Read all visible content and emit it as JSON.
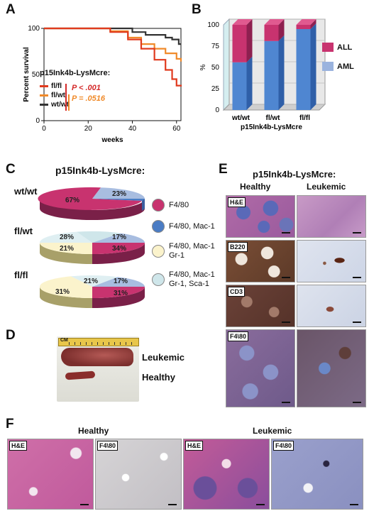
{
  "panels": {
    "A": "A",
    "B": "B",
    "C": "C",
    "D": "D",
    "E": "E",
    "F": "F"
  },
  "panelA": {
    "legend_title": "p15Ink4b-LysMcre:",
    "legend": [
      {
        "label": "fl/fl",
        "color": "#e03a1e"
      },
      {
        "label": "fl/wt",
        "color": "#f08a2a"
      },
      {
        "label": "wt/wt",
        "color": "#333333"
      }
    ],
    "p1": "P < .001",
    "p2": "P = .0516",
    "p1_color": "#d42a2a",
    "p2_color": "#f08a2a"
  },
  "panelB": {
    "legend": [
      {
        "label": "ALL",
        "color": "#c8336f"
      },
      {
        "label": "AML",
        "color": "#9ab3de"
      }
    ]
  },
  "panelC": {
    "title": "p15Ink4b-LysMcre:",
    "pies": [
      {
        "label": "wt/wt",
        "slices": [
          "67%",
          "23%"
        ]
      },
      {
        "label": "fl/wt",
        "slices": [
          "28%",
          "17%",
          "34%",
          "21%"
        ]
      },
      {
        "label": "fl/fl",
        "slices": [
          "21%",
          "17%",
          "31%",
          "31%"
        ]
      }
    ],
    "legend": [
      {
        "lines": [
          "F4/80"
        ],
        "color": "#c8336f"
      },
      {
        "lines": [
          "F4/80, Mac-1"
        ],
        "color": "#4a7cc4"
      },
      {
        "lines": [
          "F4/80, Mac-1",
          "Gr-1"
        ],
        "color": "#fbf3cc"
      },
      {
        "lines": [
          "F4/80, Mac-1",
          "Gr-1, Sca-1"
        ],
        "color": "#cfe6ea"
      }
    ]
  },
  "panelD": {
    "leukemic": "Leukemic",
    "healthy": "Healthy",
    "ruler": "CM"
  },
  "panelE": {
    "title": "p15Ink4b-LysMcre:",
    "col_healthy": "Healthy",
    "col_leukemic": "Leukemic",
    "rows": [
      "H&E",
      "B220",
      "CD3",
      "F4\\80"
    ]
  },
  "panelF": {
    "healthy": "Healthy",
    "leukemic": "Leukemic",
    "tags": [
      "H&E",
      "F4\\80",
      "H&E",
      "F4\\80"
    ]
  },
  "chart_data": [
    {
      "type": "line",
      "title": "",
      "xlabel": "weeks",
      "ylabel": "Percent survival",
      "xlim": [
        0,
        62
      ],
      "ylim": [
        0,
        100
      ],
      "xticks": [
        0,
        20,
        40,
        60
      ],
      "yticks": [
        0,
        50,
        100
      ],
      "series": [
        {
          "name": "wt/wt",
          "color": "#333333",
          "x": [
            0,
            20,
            40,
            46,
            55,
            58,
            61,
            62
          ],
          "y": [
            100,
            100,
            96,
            93,
            90,
            88,
            83,
            83
          ]
        },
        {
          "name": "fl/wt",
          "color": "#f08a2a",
          "x": [
            0,
            20,
            30,
            38,
            44,
            50,
            55,
            60,
            62
          ],
          "y": [
            100,
            100,
            97,
            90,
            83,
            78,
            73,
            67,
            64
          ]
        },
        {
          "name": "fl/fl",
          "color": "#e03a1e",
          "x": [
            0,
            20,
            30,
            38,
            44,
            50,
            55,
            58,
            60,
            62
          ],
          "y": [
            100,
            100,
            96,
            88,
            78,
            66,
            55,
            45,
            38,
            37
          ]
        }
      ]
    },
    {
      "type": "bar",
      "title": "",
      "xlabel": "p15Ink4b-LysMcre",
      "ylabel": "%",
      "ylim": [
        0,
        100
      ],
      "yticks": [
        0,
        25,
        50,
        75,
        100
      ],
      "categories": [
        "wt/wt",
        "fl/wt",
        "fl/fl"
      ],
      "stacked": true,
      "series": [
        {
          "name": "AML",
          "values": [
            56,
            81,
            95
          ]
        },
        {
          "name": "ALL",
          "values": [
            44,
            19,
            5
          ]
        }
      ]
    }
  ]
}
